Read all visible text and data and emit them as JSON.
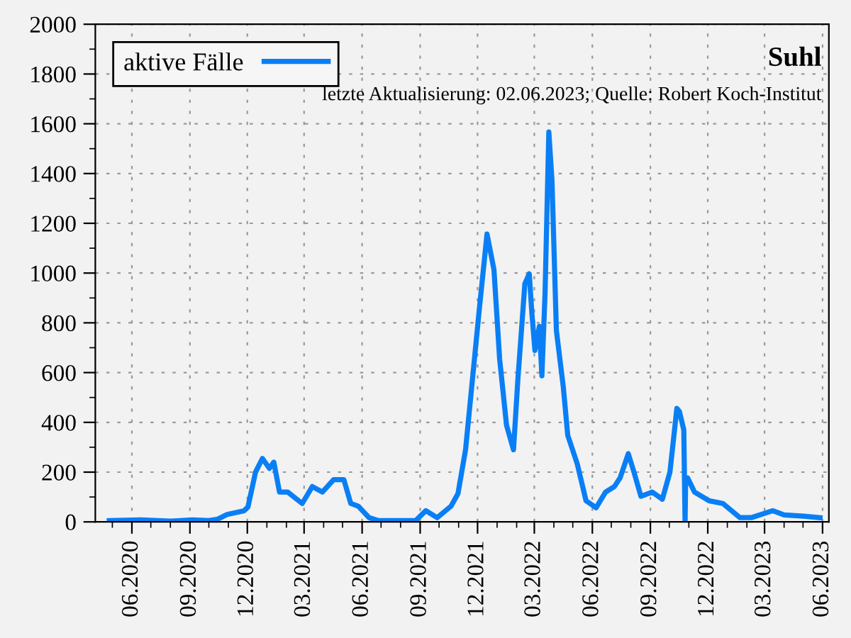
{
  "chart_data": {
    "type": "line",
    "title": "Suhl",
    "subtitle": "letzte Aktualisierung: 02.06.2023; Quelle: Robert Koch-Institut",
    "series": [
      {
        "name": "aktive Fälle",
        "color": "#0a7ff5",
        "x": [
          "2020-04-26",
          "2020-06-15",
          "2020-08-01",
          "2020-09-05",
          "2020-10-01",
          "2020-10-14",
          "2020-10-30",
          "2020-11-26",
          "2020-12-02",
          "2020-12-14",
          "2020-12-25",
          "2021-01-05",
          "2021-01-12",
          "2021-01-21",
          "2021-02-03",
          "2021-02-26",
          "2021-03-14",
          "2021-03-30",
          "2021-04-17",
          "2021-05-03",
          "2021-05-14",
          "2021-05-26",
          "2021-06-12",
          "2021-06-27",
          "2021-08-25",
          "2021-09-10",
          "2021-09-28",
          "2021-10-20",
          "2021-10-31",
          "2021-11-12",
          "2021-11-23",
          "2021-12-04",
          "2021-12-16",
          "2021-12-27",
          "2022-01-05",
          "2022-01-16",
          "2022-01-27",
          "2022-02-03",
          "2022-02-14",
          "2022-02-21",
          "2022-02-25",
          "2022-03-02",
          "2022-03-09",
          "2022-03-13",
          "2022-03-18",
          "2022-03-24",
          "2022-03-29",
          "2022-04-05",
          "2022-04-16",
          "2022-04-23",
          "2022-05-08",
          "2022-05-22",
          "2022-06-07",
          "2022-06-22",
          "2022-07-06",
          "2022-07-15",
          "2022-07-28",
          "2022-08-06",
          "2022-08-17",
          "2022-09-04",
          "2022-09-20",
          "2022-10-02",
          "2022-10-13",
          "2022-10-17",
          "2022-10-24",
          "2022-10-26",
          "2022-10-27",
          "2022-10-30",
          "2022-11-10",
          "2022-12-03",
          "2022-12-25",
          "2023-01-21",
          "2023-02-08",
          "2023-03-14",
          "2023-04-01",
          "2023-05-02",
          "2023-05-28"
        ],
        "values": [
          5,
          8,
          3,
          8,
          5,
          10,
          30,
          45,
          60,
          200,
          255,
          215,
          240,
          120,
          120,
          74,
          142,
          120,
          170,
          170,
          74,
          63,
          17,
          5,
          5,
          45,
          17,
          63,
          114,
          290,
          575,
          860,
          1157,
          1014,
          655,
          388,
          290,
          575,
          957,
          997,
          843,
          689,
          786,
          587,
          917,
          1567,
          1373,
          769,
          541,
          348,
          234,
          85,
          57,
          120,
          142,
          177,
          274,
          200,
          103,
          120,
          91,
          200,
          456,
          444,
          370,
          0,
          177,
          177,
          120,
          85,
          74,
          17,
          17,
          45,
          28,
          23,
          17
        ]
      }
    ],
    "xlim": [
      "2020-04-04",
      "2023-06-11"
    ],
    "ylim": [
      0,
      2000
    ],
    "xticks": [
      {
        "value": "2020-06-01",
        "label": "06.2020"
      },
      {
        "value": "2020-09-01",
        "label": "09.2020"
      },
      {
        "value": "2020-12-01",
        "label": "12.2020"
      },
      {
        "value": "2021-03-01",
        "label": "03.2021"
      },
      {
        "value": "2021-06-01",
        "label": "06.2021"
      },
      {
        "value": "2021-09-01",
        "label": "09.2021"
      },
      {
        "value": "2021-12-01",
        "label": "12.2021"
      },
      {
        "value": "2022-03-01",
        "label": "03.2022"
      },
      {
        "value": "2022-06-01",
        "label": "06.2022"
      },
      {
        "value": "2022-09-01",
        "label": "09.2022"
      },
      {
        "value": "2022-12-01",
        "label": "12.2022"
      },
      {
        "value": "2023-03-01",
        "label": "03.2023"
      },
      {
        "value": "2023-06-01",
        "label": "06.2023"
      }
    ],
    "yticks": [
      0,
      200,
      400,
      600,
      800,
      1000,
      1200,
      1400,
      1600,
      1800,
      2000
    ],
    "grid": true,
    "legend": "top left",
    "line_style": "solid",
    "marker": "none"
  }
}
